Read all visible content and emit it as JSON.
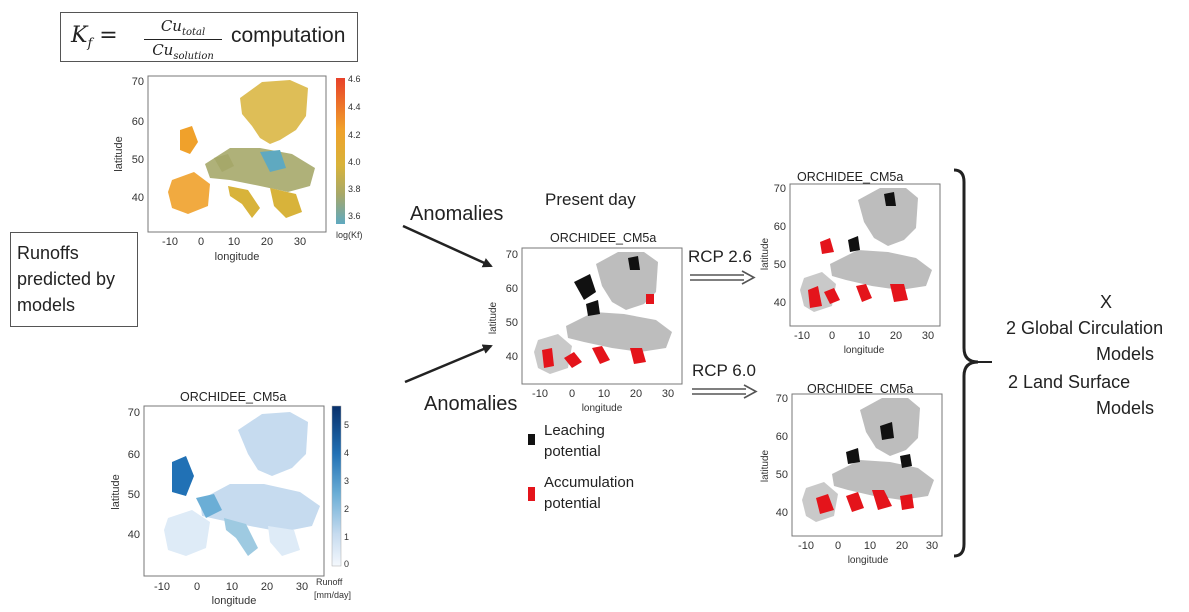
{
  "formula": {
    "lhs": "K",
    "lhs_sub": "f",
    "equals": "=",
    "numerator": "Cu",
    "numerator_sub": "total",
    "denominator": "Cu",
    "denominator_sub": "solution",
    "word": "computation"
  },
  "runoff_box": {
    "line1": "Runoffs",
    "line2": "predicted by",
    "line3": "models"
  },
  "kf_map": {
    "title": "",
    "xlabel": "longitude",
    "ylabel": "latitude",
    "xticks": [
      "-10",
      "0",
      "10",
      "20",
      "30"
    ],
    "yticks": [
      "70",
      "60",
      "50",
      "40"
    ],
    "colorbar_ticks": [
      "4.6",
      "4.4",
      "4.2",
      "4.0",
      "3.8",
      "3.6"
    ],
    "colorbar_label": "log(Kf)",
    "colors": [
      "#e8412a",
      "#f0a12b",
      "#d8b33a",
      "#a6a86a",
      "#5fa9c0"
    ]
  },
  "runoff_map": {
    "title": "ORCHIDEE_CM5a",
    "xlabel": "longitude",
    "ylabel": "latitude",
    "xticks": [
      "-10",
      "0",
      "10",
      "20",
      "30"
    ],
    "yticks": [
      "70",
      "60",
      "50",
      "40"
    ],
    "colorbar_ticks": [
      "5",
      "4",
      "3",
      "2",
      "1",
      "0"
    ],
    "colorbar_label_1": "Runoff",
    "colorbar_label_2": "[mm/day]",
    "colors": [
      "#08306b",
      "#2171b5",
      "#6baed6",
      "#c6dbef",
      "#f4f8fd"
    ]
  },
  "arrows": {
    "anomalies_top": "Anomalies",
    "anomalies_bottom": "Anomalies"
  },
  "present_map": {
    "header": "Present day",
    "title": "ORCHIDEE_CM5a",
    "xlabel": "longitude",
    "ylabel": "latitude",
    "xticks": [
      "-10",
      "0",
      "10",
      "20",
      "30"
    ],
    "yticks": [
      "70",
      "60",
      "50",
      "40"
    ]
  },
  "legend": {
    "leaching_1": "Leaching",
    "leaching_2": "potential",
    "accumulation_1": "Accumulation",
    "accumulation_2": "potential",
    "leaching_color": "#111111",
    "accumulation_color": "#e4141b"
  },
  "scenarios": {
    "rcp_top": "RCP 2.6",
    "rcp_bottom": "RCP 6.0"
  },
  "future_map_top": {
    "title": "ORCHIDEE_CM5a",
    "xlabel": "longitude",
    "ylabel": "latitude",
    "xticks": [
      "-10",
      "0",
      "10",
      "20",
      "30"
    ],
    "yticks": [
      "70",
      "60",
      "50",
      "40"
    ]
  },
  "future_map_bottom": {
    "title": "ORCHIDEE_CM5a",
    "xlabel": "longitude",
    "ylabel": "latitude",
    "xticks": [
      "-10",
      "0",
      "10",
      "20",
      "30"
    ],
    "yticks": [
      "70",
      "60",
      "50",
      "40"
    ]
  },
  "summary": {
    "x": "X",
    "line1": "2 Global Circulation",
    "line2": "Models",
    "line3": "2 Land Surface",
    "line4": "Models"
  }
}
